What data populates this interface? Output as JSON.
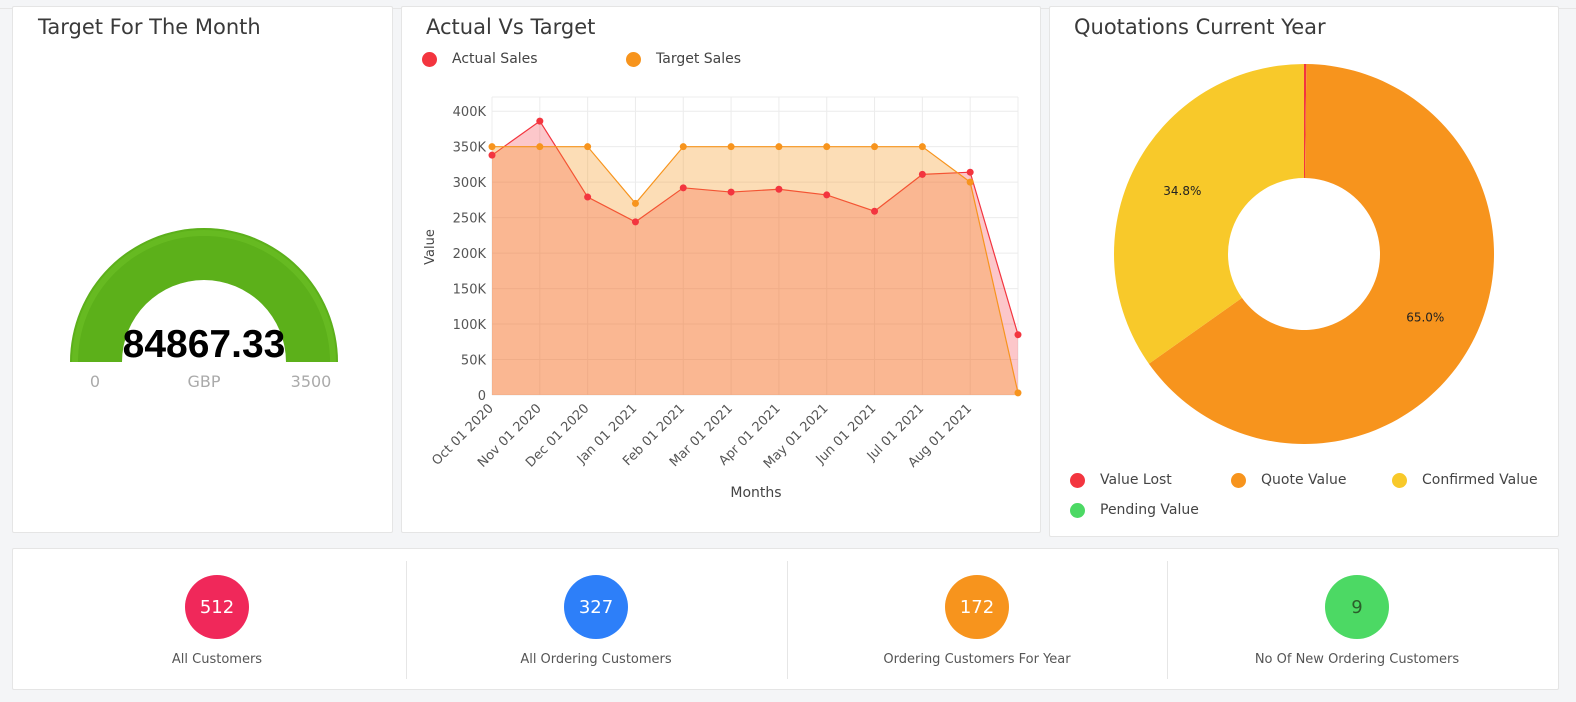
{
  "gauge_card": {
    "title": "Target For The Month",
    "value": "84867.33",
    "min": "0",
    "max": "3500",
    "unit": "GBP",
    "fill_fraction": 1.0,
    "color": "#5cb01a"
  },
  "chart_card": {
    "title": "Actual Vs Target",
    "chart_data": {
      "type": "area",
      "categories": [
        "Oct 01 2020",
        "Nov 01 2020",
        "Dec 01 2020",
        "Jan 01 2021",
        "Feb 01 2021",
        "Mar 01 2021",
        "Apr 01 2021",
        "May 01 2021",
        "Jun 01 2021",
        "Jul 01 2021",
        "Aug 01 2021",
        ""
      ],
      "series": [
        {
          "name": "Actual Sales",
          "color": "#f3353f",
          "values": [
            338000,
            386000,
            279000,
            244000,
            292000,
            286000,
            290000,
            282000,
            259000,
            311000,
            314000,
            85000
          ]
        },
        {
          "name": "Target Sales",
          "color": "#f7941d",
          "values": [
            350000,
            350000,
            350000,
            270000,
            350000,
            350000,
            350000,
            350000,
            350000,
            350000,
            300000,
            3000
          ]
        }
      ],
      "xlabel": "Months",
      "ylabel": "Value",
      "ylim": [
        0,
        420000
      ],
      "yticks": [
        "0",
        "50K",
        "100K",
        "150K",
        "200K",
        "250K",
        "300K",
        "350K",
        "400K"
      ],
      "grid": true,
      "legend": "top-left"
    }
  },
  "pie_card": {
    "title": "Quotations Current Year",
    "chart_data": {
      "type": "pie",
      "slices": [
        {
          "name": "Value Lost",
          "value": 0.2,
          "color": "#f3353f"
        },
        {
          "name": "Quote Value",
          "value": 65.0,
          "label": "65.0%",
          "color": "#f7941d"
        },
        {
          "name": "Confirmed Value",
          "value": 34.8,
          "label": "34.8%",
          "color": "#f8c92a"
        },
        {
          "name": "Pending Value",
          "value": 0,
          "color": "#4cd964"
        }
      ],
      "legend": "bottom"
    }
  },
  "stats": [
    {
      "value": "512",
      "label": "All Customers",
      "color": "#f0285a"
    },
    {
      "value": "327",
      "label": "All Ordering Customers",
      "color": "#2d7ff9"
    },
    {
      "value": "172",
      "label": "Ordering Customers For Year",
      "color": "#f7941d"
    },
    {
      "value": "9",
      "label": "No Of New Ordering Customers",
      "color": "#4cd964"
    }
  ]
}
